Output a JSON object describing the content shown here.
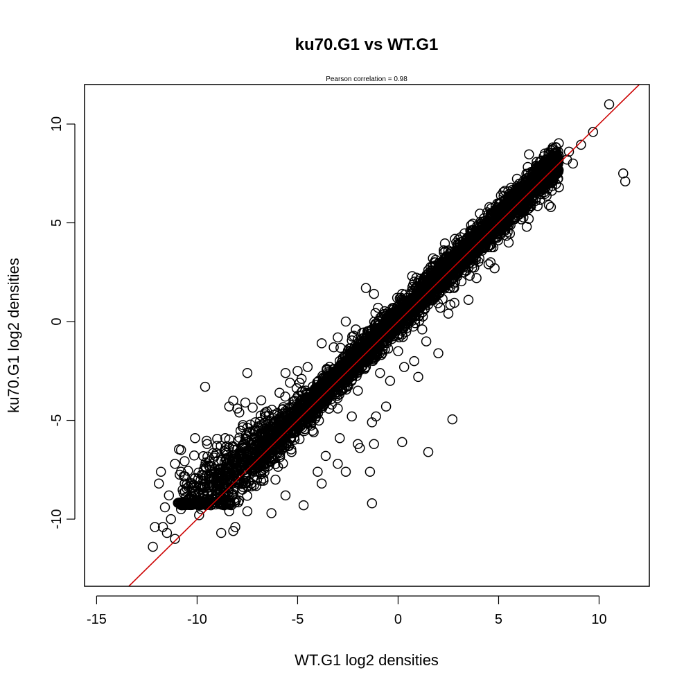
{
  "chart_data": {
    "type": "scatter",
    "title": "ku70.G1 vs WT.G1",
    "subtitle": "Pearson correlation =  0.98",
    "xlabel": "WT.G1 log2 densities",
    "ylabel": "ku70.G1 log2 densities",
    "xlim": [
      -15.6,
      12.5
    ],
    "ylim": [
      -13.4,
      12.0
    ],
    "x_ticks": [
      -15,
      -10,
      -5,
      0,
      5,
      10
    ],
    "x_tick_labels": [
      "-15",
      "-10",
      "-5",
      "0",
      "5",
      "10"
    ],
    "y_ticks": [
      -10,
      -5,
      0,
      5,
      10
    ],
    "y_tick_labels": [
      "-10",
      "-5",
      "0",
      "5",
      "10"
    ],
    "grid": false,
    "marker": "open-circle",
    "point_color": "#000000",
    "reference_line": {
      "slope": 1,
      "intercept": 0,
      "color": "#cc0000"
    },
    "dense_band": {
      "x_range": [
        -11,
        8
      ],
      "y_floor": -9.3
    },
    "series": [
      {
        "values": [
          [
            10.5,
            11.0
          ],
          [
            9.7,
            9.6
          ],
          [
            9.1,
            8.95
          ],
          [
            8.5,
            8.6
          ],
          [
            8.4,
            8.2
          ],
          [
            8.7,
            8.0
          ],
          [
            7.7,
            8.3
          ],
          [
            8.0,
            6.8
          ],
          [
            11.2,
            7.5
          ],
          [
            11.3,
            7.1
          ],
          [
            6.5,
            6.3
          ],
          [
            7.5,
            5.9
          ],
          [
            7.6,
            5.8
          ],
          [
            6.5,
            5.2
          ],
          [
            6.4,
            4.8
          ],
          [
            5.5,
            4.0
          ],
          [
            4.8,
            2.7
          ],
          [
            4.5,
            2.9
          ],
          [
            3.5,
            1.1
          ],
          [
            2.8,
            0.95
          ],
          [
            2.6,
            0.85
          ],
          [
            2.1,
            0.7
          ],
          [
            1.4,
            -1.0
          ],
          [
            0.8,
            -2.0
          ],
          [
            -0.4,
            -3.0
          ],
          [
            0.3,
            -2.3
          ],
          [
            -1.6,
            1.7
          ],
          [
            -2.6,
            0.0
          ],
          [
            -3.0,
            -0.8
          ],
          [
            -3.8,
            -1.1
          ],
          [
            -4.5,
            -2.3
          ],
          [
            -4.8,
            -2.9
          ],
          [
            -5.0,
            -2.5
          ],
          [
            -5.6,
            -2.6
          ],
          [
            -7.5,
            -2.6
          ],
          [
            -9.6,
            -3.3
          ],
          [
            -8.2,
            -4.0
          ],
          [
            -8.4,
            -4.3
          ],
          [
            -7.6,
            -4.1
          ],
          [
            -7.9,
            -4.6
          ],
          [
            -3.3,
            -4.2
          ],
          [
            -2.3,
            -4.8
          ],
          [
            -1.3,
            -5.1
          ],
          [
            -1.1,
            -4.8
          ],
          [
            -2.0,
            -6.2
          ],
          [
            -1.9,
            -6.4
          ],
          [
            -1.2,
            -6.2
          ],
          [
            0.2,
            -6.1
          ],
          [
            1.5,
            -6.6
          ],
          [
            2.7,
            -4.95
          ],
          [
            -1.4,
            -7.6
          ],
          [
            -1.3,
            -9.2
          ],
          [
            -2.6,
            -7.6
          ],
          [
            -4.7,
            -9.3
          ],
          [
            -6.3,
            -9.7
          ],
          [
            -7.5,
            -9.6
          ],
          [
            -8.4,
            -9.6
          ],
          [
            -8.1,
            -10.4
          ],
          [
            -8.2,
            -10.6
          ],
          [
            -8.8,
            -10.7
          ],
          [
            -9.9,
            -9.8
          ],
          [
            -11.1,
            -11.0
          ],
          [
            -11.5,
            -10.7
          ],
          [
            -11.7,
            -10.4
          ],
          [
            -12.1,
            -10.4
          ],
          [
            -12.2,
            -11.4
          ],
          [
            -11.3,
            -10.0
          ],
          [
            -11.6,
            -9.4
          ],
          [
            -11.4,
            -8.8
          ],
          [
            -11.9,
            -8.2
          ],
          [
            -11.8,
            -7.6
          ],
          [
            -10.8,
            -7.6
          ],
          [
            -11.1,
            -7.2
          ],
          [
            -10.8,
            -6.5
          ],
          [
            -10.1,
            -5.9
          ],
          [
            -9.5,
            -6.2
          ],
          [
            -10.6,
            -8.6
          ],
          [
            -10.2,
            -9.0
          ],
          [
            -9.8,
            -9.5
          ],
          [
            -10.8,
            -9.5
          ],
          [
            -7.1,
            -5.1
          ],
          [
            -6.6,
            -4.6
          ],
          [
            -5.9,
            -3.6
          ],
          [
            -4.9,
            -3.1
          ],
          [
            -3.2,
            -1.3
          ],
          [
            -2.1,
            -0.4
          ],
          [
            -1.0,
            0.7
          ],
          [
            0.2,
            1.4
          ],
          [
            1.5,
            2.6
          ],
          [
            3.2,
            3.3
          ],
          [
            4.2,
            4.6
          ],
          [
            5.0,
            5.4
          ],
          [
            5.4,
            5.0
          ],
          [
            6.8,
            6.6
          ],
          [
            7.2,
            7.3
          ],
          [
            7.4,
            7.6
          ],
          [
            2.9,
            4.0
          ],
          [
            1.8,
            3.0
          ],
          [
            0.7,
            2.3
          ],
          [
            -1.2,
            1.4
          ],
          [
            3.9,
            2.2
          ],
          [
            4.6,
            3.0
          ],
          [
            2.5,
            0.4
          ],
          [
            1.2,
            -0.4
          ],
          [
            0.0,
            -1.5
          ],
          [
            -0.9,
            -2.6
          ],
          [
            -2.0,
            -3.5
          ],
          [
            -3.0,
            -4.4
          ],
          [
            -4.2,
            -5.6
          ],
          [
            -5.3,
            -6.6
          ],
          [
            -6.1,
            -8.0
          ],
          [
            -3.6,
            -6.8
          ],
          [
            -2.9,
            -5.9
          ],
          [
            -4.0,
            -7.6
          ],
          [
            -5.6,
            -8.8
          ],
          [
            -3.8,
            -8.2
          ],
          [
            -3.0,
            -7.2
          ],
          [
            -0.6,
            -4.3
          ],
          [
            1.0,
            -2.8
          ],
          [
            2.0,
            -1.6
          ]
        ]
      }
    ]
  }
}
